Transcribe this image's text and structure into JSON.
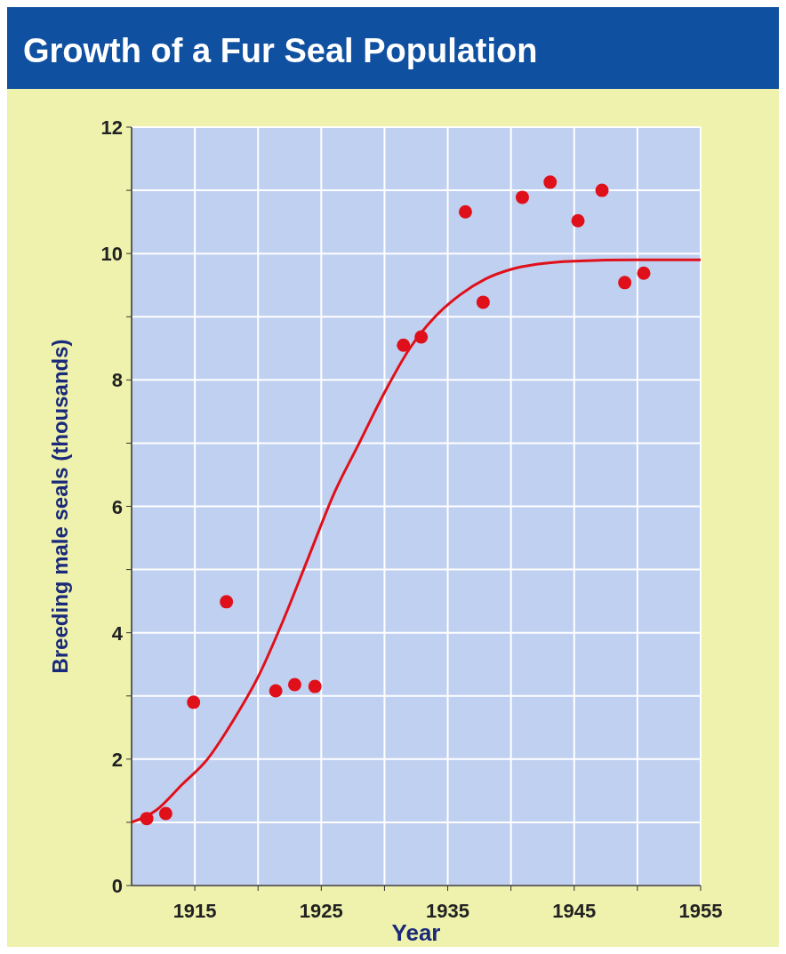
{
  "chart_data": {
    "type": "scatter",
    "title": "Growth of a Fur Seal Population",
    "xlabel": "Year",
    "ylabel": "Breeding male seals (thousands)",
    "xlim": [
      1910,
      1955
    ],
    "ylim": [
      0,
      12
    ],
    "xticks": [
      {
        "value": 1915,
        "label": "1915"
      },
      {
        "value": 1920,
        "label": null
      },
      {
        "value": 1925,
        "label": "1925"
      },
      {
        "value": 1930,
        "label": null
      },
      {
        "value": 1935,
        "label": "1935"
      },
      {
        "value": 1940,
        "label": null
      },
      {
        "value": 1945,
        "label": "1945"
      },
      {
        "value": 1950,
        "label": null
      },
      {
        "value": 1955,
        "label": "1955"
      }
    ],
    "yticks": [
      0,
      {
        "value": 1,
        "label": null
      },
      2,
      {
        "value": 3,
        "label": null
      },
      4,
      {
        "value": 5,
        "label": null
      },
      6,
      {
        "value": 7,
        "label": null
      },
      8,
      {
        "value": 9,
        "label": null
      },
      10,
      {
        "value": 11,
        "label": null
      },
      12
    ],
    "grid": true,
    "series": [
      {
        "marker": "circle",
        "color": "#e0101a",
        "x": [
          1911.2,
          1912.7,
          1914.9,
          1917.5,
          1921.4,
          1922.9,
          1924.5,
          1931.5,
          1932.9,
          1936.4,
          1937.8,
          1940.9,
          1943.1,
          1945.3,
          1947.2,
          1949.0,
          1950.5
        ],
        "values": [
          1.06,
          1.14,
          2.9,
          4.49,
          3.08,
          3.18,
          3.15,
          8.55,
          8.68,
          10.66,
          9.23,
          10.89,
          11.13,
          10.52,
          11.0,
          9.54,
          9.69
        ]
      },
      {
        "type": "line",
        "marker": "none",
        "color": "#e0101a",
        "x": [
          1910,
          1912,
          1914,
          1916,
          1918,
          1920,
          1922,
          1924,
          1926,
          1928,
          1930,
          1932,
          1934,
          1936,
          1938,
          1940,
          1942,
          1945,
          1950,
          1955
        ],
        "values": [
          1.0,
          1.2,
          1.6,
          2.0,
          2.6,
          3.3,
          4.2,
          5.2,
          6.2,
          7.0,
          7.8,
          8.5,
          9.0,
          9.35,
          9.6,
          9.75,
          9.83,
          9.88,
          9.9,
          9.9
        ]
      }
    ]
  }
}
